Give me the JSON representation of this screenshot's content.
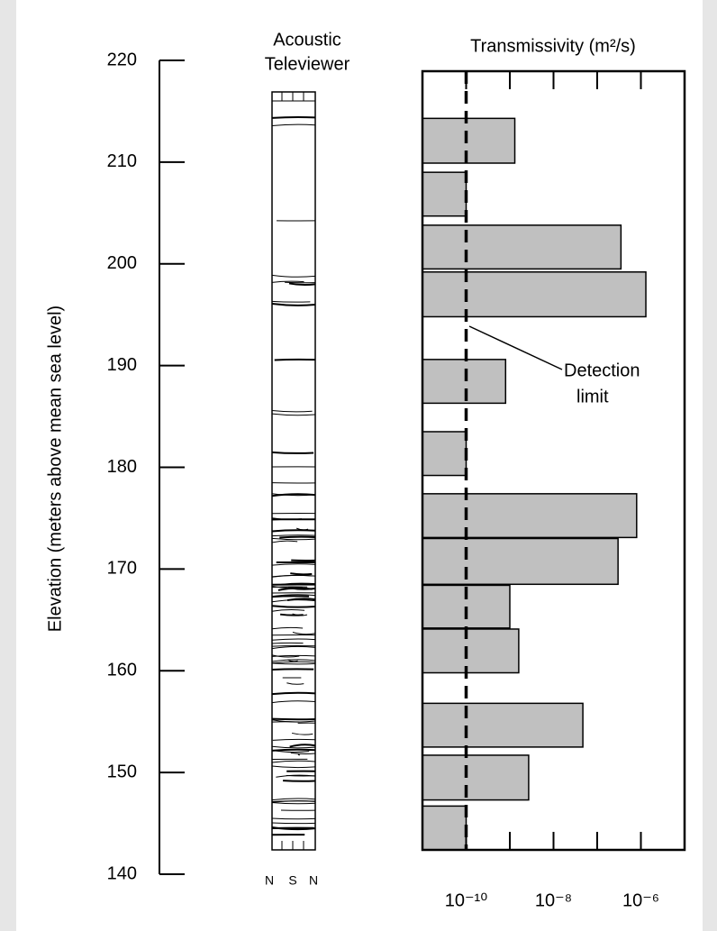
{
  "chart_data": {
    "type": "interval-bar",
    "y_label": "Elevation (meters above mean sea level)",
    "log_title": [
      "Acoustic",
      "Televiewer"
    ],
    "log_orientation": [
      "N",
      "S",
      "N"
    ],
    "x_label": "Transmissivity (m²/s)",
    "ylim": [
      140,
      220
    ],
    "yticks": [
      140,
      150,
      160,
      170,
      180,
      190,
      200,
      210,
      220
    ],
    "xlim": [
      1e-11,
      1e-05
    ],
    "x_log": true,
    "xticks": [
      {
        "value": 1e-10,
        "label": "10⁻¹⁰"
      },
      {
        "value": 1e-08,
        "label": "10⁻⁸"
      },
      {
        "value": 1e-06,
        "label": "10⁻⁶"
      }
    ],
    "x_minor_ticks": [
      1e-09,
      1e-07
    ],
    "top": [
      214.3,
      209.0,
      203.8,
      199.2,
      190.6,
      183.5,
      177.4,
      173.0,
      168.4,
      164.1,
      156.8,
      151.7,
      146.7
    ],
    "bottom": [
      209.9,
      204.7,
      199.5,
      194.8,
      186.3,
      179.2,
      173.1,
      168.5,
      164.2,
      159.8,
      152.5,
      147.3,
      142.4
    ],
    "values": [
      1.3e-09,
      1e-10,
      3.5e-07,
      1.3e-06,
      8e-10,
      1e-10,
      8e-07,
      3e-07,
      1e-09,
      1.6e-09,
      4.7e-08,
      2.7e-09,
      1e-10
    ],
    "color": "#c0c0c0",
    "detection_limit": 1e-10,
    "annotation": [
      "Detection",
      "limit"
    ]
  }
}
